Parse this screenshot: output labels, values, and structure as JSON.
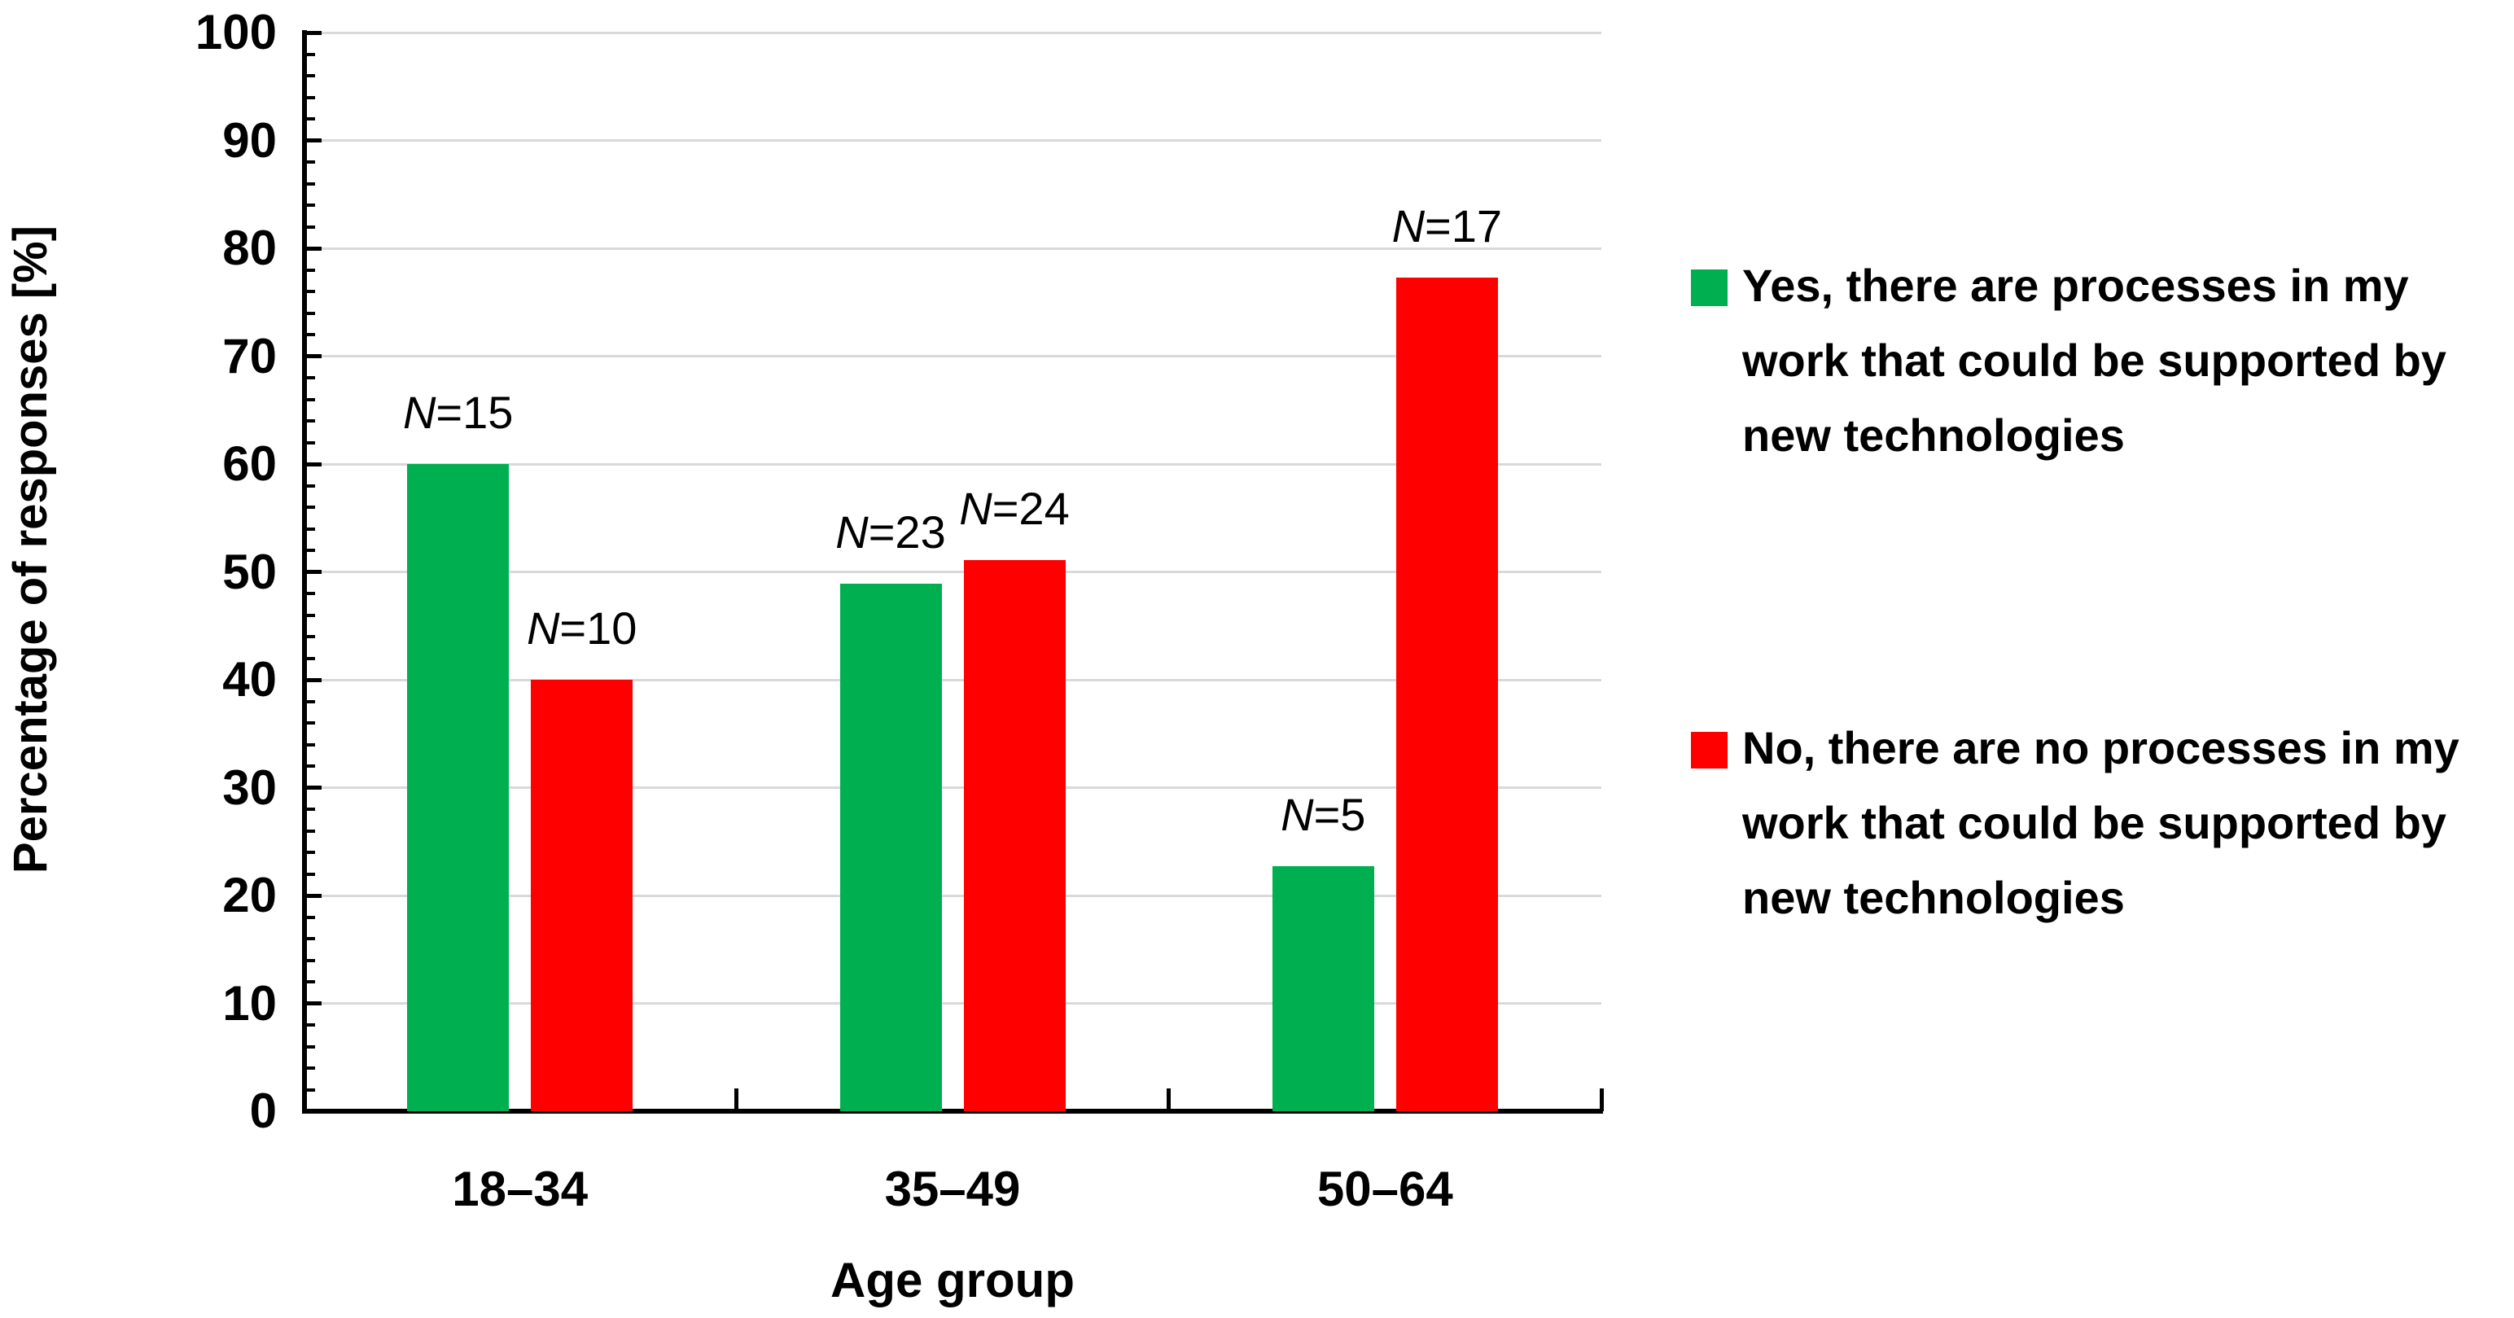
{
  "figure": {
    "background": "#FFFFFF",
    "text_color": "#000000",
    "axis_color": "#000000",
    "gridline_color": "#D9D9D9"
  },
  "chart_data": {
    "type": "bar",
    "title": "",
    "categories": [
      "18–34",
      "35–49",
      "50–64"
    ],
    "series": [
      {
        "key": "yes",
        "name": "Yes, there are processes in my work that could be supported by new technologies",
        "legend_lines": [
          "Yes, there are processes in my",
          "work that could be supported by",
          "new technologies"
        ],
        "color": "#00B050",
        "values": [
          60.0,
          48.9,
          22.7
        ],
        "data_labels": [
          "N=15",
          "N=23",
          "N=5"
        ],
        "counts": [
          15,
          23,
          5
        ]
      },
      {
        "key": "no",
        "name": "No, there are no processes in my work that could be supported by new technologies",
        "legend_lines": [
          "No, there are no processes in my",
          "work that could be supported by",
          "new technologies"
        ],
        "color": "#FF0000",
        "values": [
          40.0,
          51.1,
          77.3
        ],
        "data_labels": [
          "N=10",
          "N=24",
          "N=17"
        ],
        "counts": [
          10,
          24,
          17
        ]
      }
    ],
    "xlabel": "Age group",
    "ylabel": "Percentage of responses [%]",
    "ylim": [
      0,
      100
    ],
    "yticks": [
      0,
      10,
      20,
      30,
      40,
      50,
      60,
      70,
      80,
      90,
      100
    ],
    "ytick_step": 10,
    "yminor_step": 2,
    "grid": true,
    "legend_position": "right"
  }
}
